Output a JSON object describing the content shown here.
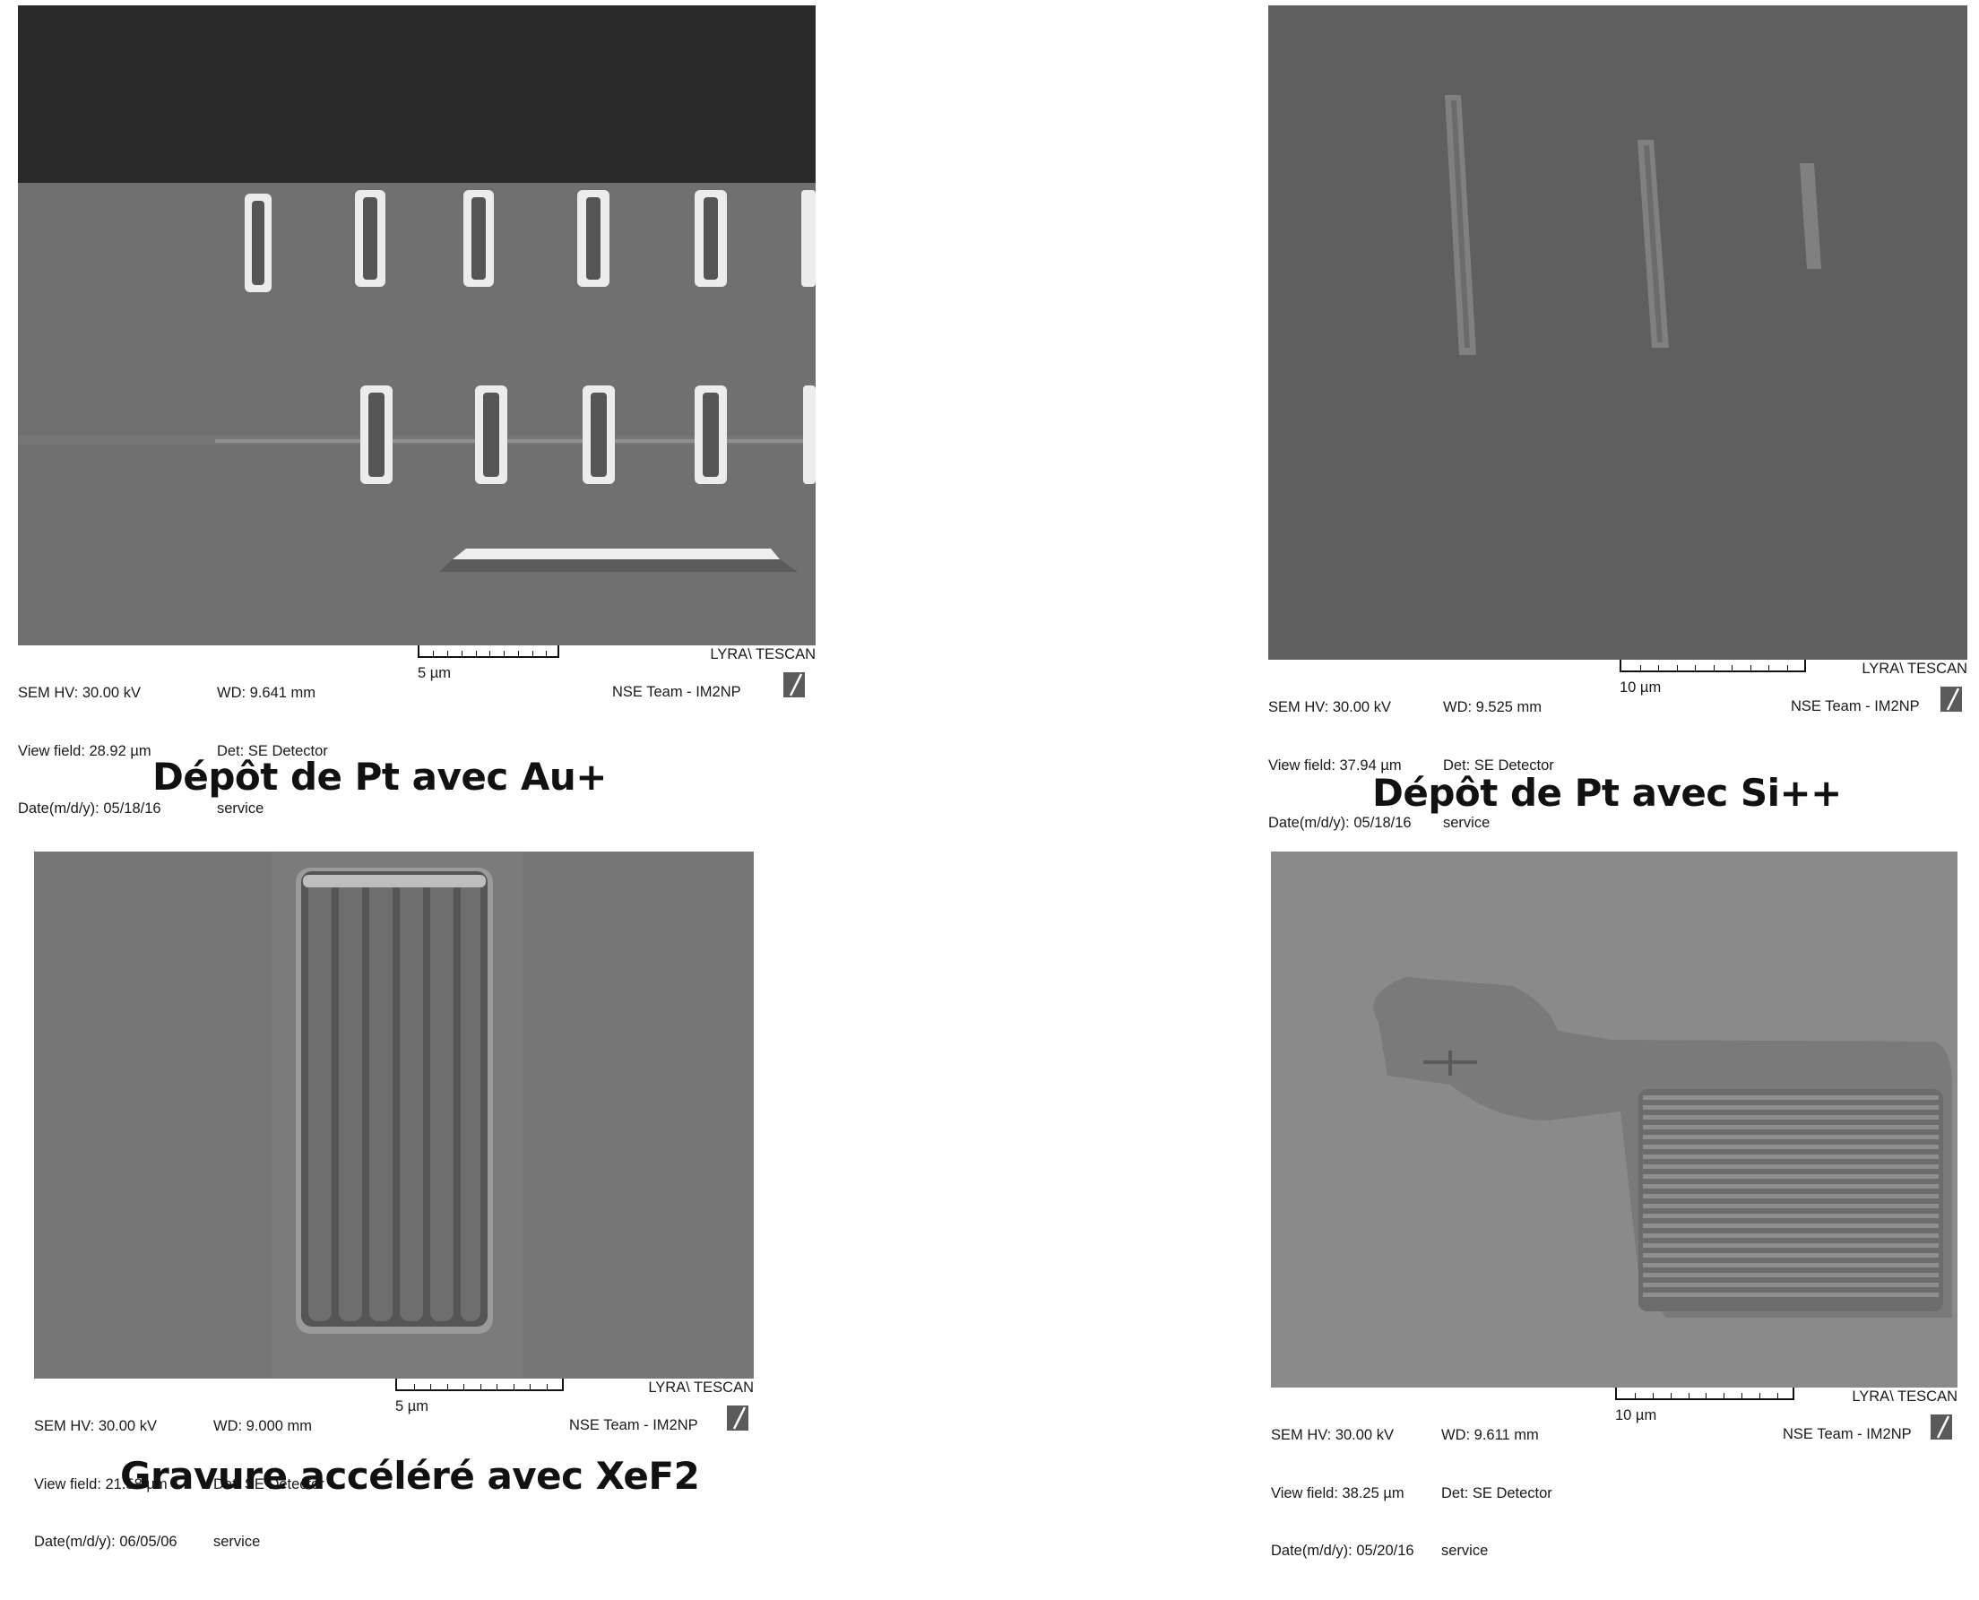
{
  "panels": [
    {
      "caption": "Dépôt de Pt avec Au+",
      "meta": {
        "col1": [
          "SEM HV: 30.00 kV",
          "View field: 28.92 µm",
          "Date(m/d/y): 05/18/16"
        ],
        "col2": [
          "WD: 9.641 mm",
          "Det: SE Detector",
          "service"
        ],
        "scale": "5 µm",
        "brand": "LYRA\\ TESCAN",
        "team": "NSE Team - IM2NP"
      }
    },
    {
      "caption": "Dépôt de Pt avec Si++",
      "meta": {
        "col1": [
          "SEM HV: 30.00 kV",
          "View field: 37.94 µm",
          "Date(m/d/y): 05/18/16"
        ],
        "col2": [
          "WD: 9.525 mm",
          "Det: SE Detector",
          "service"
        ],
        "scale": "10 µm",
        "brand": "LYRA\\ TESCAN",
        "team": "NSE Team - IM2NP"
      }
    },
    {
      "caption": "Gravure accéléré avec XeF2",
      "meta": {
        "col1": [
          "SEM HV: 30.00 kV",
          "View field: 21.58 µm",
          "Date(m/d/y): 06/05/06"
        ],
        "col2": [
          "WD: 9.000 mm",
          "Det: SE Detector",
          "service"
        ],
        "scale": "5 µm",
        "brand": "LYRA\\ TESCAN",
        "team": "NSE Team - IM2NP"
      }
    },
    {
      "caption": "",
      "meta": {
        "col1": [
          "SEM HV: 30.00 kV",
          "View field: 38.25 µm",
          "Date(m/d/y): 05/20/16"
        ],
        "col2": [
          "WD: 9.611 mm",
          "Det: SE Detector",
          "service"
        ],
        "scale": "10 µm",
        "brand": "LYRA\\ TESCAN",
        "team": "NSE Team - IM2NP"
      }
    }
  ],
  "icons": {
    "logo": "tescan-logo-icon"
  }
}
